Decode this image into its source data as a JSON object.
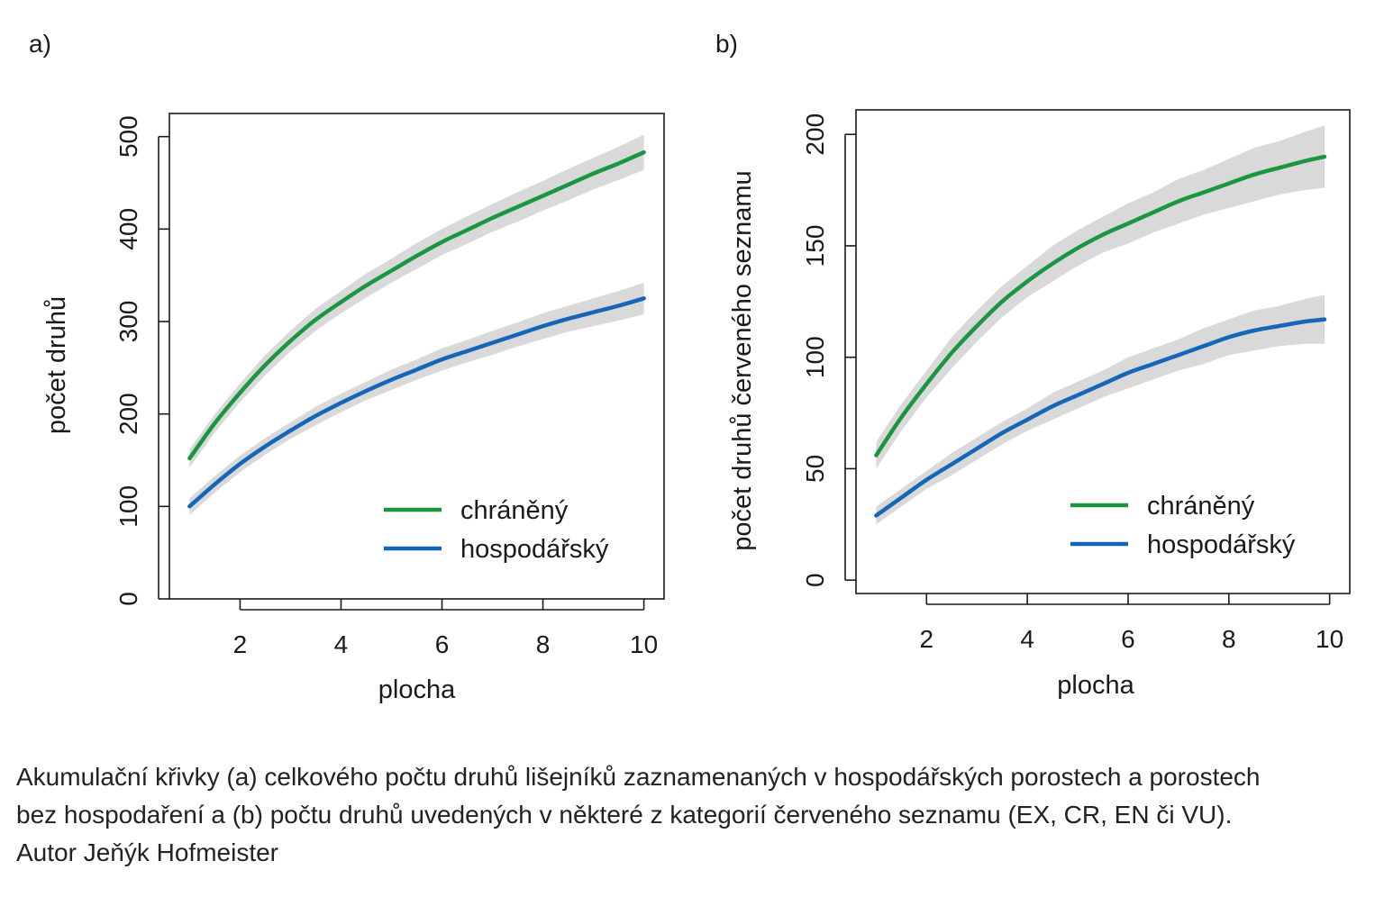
{
  "chart_data": [
    {
      "type": "line",
      "panel_label": "a)",
      "x": [
        1,
        1.5,
        2,
        2.5,
        3,
        3.5,
        4,
        4.5,
        5,
        5.5,
        6,
        6.5,
        7,
        7.5,
        8,
        8.5,
        9,
        9.5,
        10
      ],
      "series": [
        {
          "name": "chráněný",
          "color": "#1a9641",
          "values": [
            152,
            190,
            223,
            253,
            279,
            302,
            321,
            339,
            355,
            371,
            386,
            399,
            412,
            424,
            436,
            448,
            460,
            471,
            483
          ],
          "band_halfwidth": [
            10,
            10,
            10,
            11,
            11,
            12,
            12,
            13,
            13,
            14,
            14,
            15,
            15,
            16,
            16,
            17,
            17,
            18,
            19
          ]
        },
        {
          "name": "hospodářský",
          "color": "#1565b8",
          "values": [
            100,
            124,
            146,
            165,
            182,
            198,
            212,
            225,
            237,
            248,
            259,
            268,
            277,
            286,
            295,
            303,
            310,
            317,
            325
          ],
          "band_halfwidth": [
            9,
            9,
            9,
            9,
            9,
            10,
            10,
            10,
            11,
            11,
            12,
            12,
            13,
            13,
            14,
            14,
            15,
            16,
            17
          ]
        }
      ],
      "xlabel": "plocha",
      "ylabel": "počet druhů",
      "xlim": [
        0.6,
        10.4
      ],
      "ylim": [
        0,
        525
      ],
      "xticks": [
        2,
        4,
        6,
        8,
        10
      ],
      "yticks": [
        0,
        100,
        200,
        300,
        400,
        500
      ],
      "band_color": "#d9d9d9",
      "legend_position": "bottom-right",
      "grid": false
    },
    {
      "type": "line",
      "panel_label": "b)",
      "x": [
        1,
        1.5,
        2,
        2.5,
        3,
        3.5,
        4,
        4.5,
        5,
        5.5,
        6,
        6.5,
        7,
        7.5,
        8,
        8.5,
        9,
        9.5,
        9.9
      ],
      "series": [
        {
          "name": "chráněný",
          "color": "#1a9641",
          "values": [
            56,
            73,
            88,
            102,
            114,
            125,
            134,
            142,
            149,
            155,
            160,
            165,
            170,
            174,
            178,
            182,
            185,
            188,
            190
          ],
          "band_halfwidth": [
            6,
            6,
            6,
            7,
            7,
            7,
            7,
            8,
            8,
            8,
            9,
            9,
            10,
            10,
            11,
            12,
            12,
            13,
            14
          ]
        },
        {
          "name": "hospodářský",
          "color": "#1565b8",
          "values": [
            29,
            37,
            45,
            52,
            59,
            66,
            72,
            78,
            83,
            88,
            93,
            97,
            101,
            105,
            109,
            112,
            114,
            116,
            117
          ],
          "band_halfwidth": [
            4,
            4,
            4,
            5,
            5,
            5,
            5,
            6,
            6,
            6,
            7,
            7,
            7,
            8,
            8,
            9,
            9,
            10,
            11
          ]
        }
      ],
      "xlabel": "plocha",
      "ylabel": "počet druhů červeného seznamu",
      "xlim": [
        0.6,
        10.4
      ],
      "ylim": [
        -6,
        211
      ],
      "xticks": [
        2,
        4,
        6,
        8,
        10
      ],
      "yticks": [
        0,
        50,
        100,
        150,
        200
      ],
      "band_color": "#d9d9d9",
      "legend_position": "bottom-right",
      "grid": false
    }
  ],
  "caption": {
    "lines": [
      "Akumulační křivky (a) celkového počtu druhů lišejníků zaznamenaných v hospodářských porostech a porostech",
      "bez hospodaření a (b) počtu druhů uvedených v některé z kategorií červeného seznamu (EX, CR, EN či VU).",
      "Autor Jeňýk Hofmeister"
    ]
  }
}
